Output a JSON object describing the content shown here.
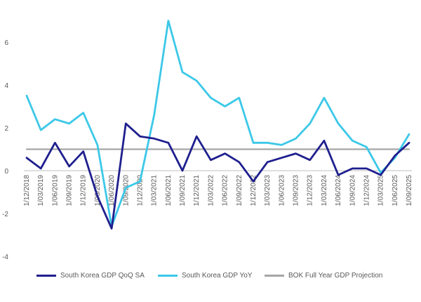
{
  "chart_data": {
    "type": "line",
    "title": "",
    "xlabel": "",
    "ylabel": "",
    "ylim": [
      -4,
      7
    ],
    "yticks": [
      -4,
      -2,
      0,
      2,
      4,
      6
    ],
    "grid": false,
    "legend_position": "bottom",
    "categories": [
      "1/12/2018",
      "1/03/2019",
      "1/06/2019",
      "1/09/2019",
      "1/12/2019",
      "1/03/2020",
      "1/06/2020",
      "1/09/2020",
      "1/12/2020",
      "1/03/2021",
      "1/06/2021",
      "1/09/2021",
      "1/12/2021",
      "1/03/2022",
      "1/06/2022",
      "1/09/2022",
      "1/12/2022",
      "1/03/2023",
      "1/06/2023",
      "1/09/2023",
      "1/12/2023",
      "1/03/2024",
      "1/06/2024",
      "1/09/2024",
      "1/12/2024",
      "1/03/2025",
      "1/06/2025",
      "1/09/2025"
    ],
    "series": [
      {
        "name": "South Korea GDP QoQ SA",
        "color": "#1f1f8f",
        "values": [
          0.6,
          0.1,
          1.3,
          0.2,
          0.9,
          -1.2,
          -2.7,
          2.2,
          1.6,
          1.5,
          1.3,
          0.0,
          1.6,
          0.5,
          0.8,
          0.4,
          -0.5,
          0.4,
          0.6,
          0.8,
          0.5,
          1.4,
          -0.2,
          0.1,
          0.1,
          -0.2,
          0.7,
          1.3
        ]
      },
      {
        "name": "South Korea GDP YoY",
        "color": "#3cc8e8",
        "values": [
          3.5,
          1.9,
          2.4,
          2.2,
          2.7,
          1.2,
          -2.6,
          -0.8,
          -0.5,
          2.6,
          7.0,
          4.6,
          4.2,
          3.4,
          3.0,
          3.4,
          1.3,
          1.3,
          1.2,
          1.5,
          2.2,
          3.4,
          2.2,
          1.4,
          1.1,
          -0.1,
          0.6,
          1.7
        ]
      },
      {
        "name": "BOK Full Year GDP Projection",
        "color": "#a6a6a6",
        "values": [
          1.0,
          1.0,
          1.0,
          1.0,
          1.0,
          1.0,
          1.0,
          1.0,
          1.0,
          1.0,
          1.0,
          1.0,
          1.0,
          1.0,
          1.0,
          1.0,
          1.0,
          1.0,
          1.0,
          1.0,
          1.0,
          1.0,
          1.0,
          1.0,
          1.0,
          1.0,
          1.0,
          1.0
        ]
      }
    ]
  }
}
